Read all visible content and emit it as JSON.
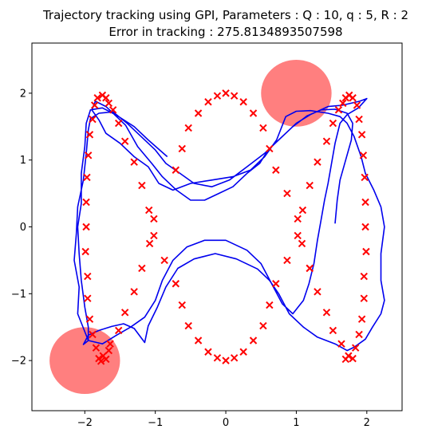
{
  "chart_data": {
    "type": "scatter",
    "title_line1": "Trajectory tracking using GPI, Parameters : Q : 10, q : 5, R : 2",
    "title_line2": "Error in tracking : 275.8134893507598",
    "xlabel": "",
    "ylabel": "",
    "xlim": [
      -2.75,
      2.5
    ],
    "ylim": [
      -2.75,
      2.75
    ],
    "xticks": [
      -2,
      -1,
      0,
      1,
      2
    ],
    "yticks": [
      -2,
      -1,
      0,
      1,
      2
    ],
    "xtick_labels": [
      "−2",
      "−1",
      "0",
      "1",
      "2"
    ],
    "ytick_labels": [
      "−2",
      "−1",
      "0",
      "1",
      "2"
    ],
    "grid": false,
    "legend": "none",
    "colors": {
      "reference": "#ff0000",
      "trajectory": "#0000ee",
      "obstacle": "#ff0000"
    },
    "obstacles": [
      {
        "cx": 1.0,
        "cy": 2.0,
        "r": 0.5,
        "opacity": 0.5
      },
      {
        "cx": -2.0,
        "cy": -2.0,
        "r": 0.5,
        "opacity": 0.5
      }
    ],
    "reference_points": [
      [
        -1.75,
        1.97
      ],
      [
        -1.82,
        1.93
      ],
      [
        -1.7,
        1.93
      ],
      [
        -1.66,
        1.85
      ],
      [
        -1.86,
        1.82
      ],
      [
        -1.6,
        1.75
      ],
      [
        -1.89,
        1.61
      ],
      [
        -1.52,
        1.55
      ],
      [
        -1.93,
        1.38
      ],
      [
        -1.43,
        1.28
      ],
      [
        -1.95,
        1.07
      ],
      [
        -1.3,
        0.97
      ],
      [
        -1.97,
        0.74
      ],
      [
        -1.19,
        0.62
      ],
      [
        -1.98,
        0.37
      ],
      [
        -1.09,
        0.25
      ],
      [
        -1.98,
        0.0
      ],
      [
        -1.02,
        0.12
      ],
      [
        -1.08,
        -0.25
      ],
      [
        -1.99,
        -0.37
      ],
      [
        -1.02,
        -0.13
      ],
      [
        -1.19,
        -0.62
      ],
      [
        -1.96,
        -0.74
      ],
      [
        -0.87,
        -0.5
      ],
      [
        -1.3,
        -0.97
      ],
      [
        -1.96,
        -1.07
      ],
      [
        -0.71,
        -0.85
      ],
      [
        -1.43,
        -1.28
      ],
      [
        -1.93,
        -1.38
      ],
      [
        -0.62,
        -1.17
      ],
      [
        -1.52,
        -1.55
      ],
      [
        -1.89,
        -1.61
      ],
      [
        -0.53,
        -1.48
      ],
      [
        -1.64,
        -1.75
      ],
      [
        -1.84,
        -1.81
      ],
      [
        -0.39,
        -1.7
      ],
      [
        -1.66,
        -1.85
      ],
      [
        -1.74,
        -1.93
      ],
      [
        -0.25,
        -1.87
      ],
      [
        -1.8,
        -1.97
      ],
      [
        -1.7,
        -1.98
      ],
      [
        -0.12,
        -1.96
      ],
      [
        0.0,
        -2.0
      ],
      [
        -1.77,
        -2.01
      ],
      [
        0.12,
        -1.96
      ],
      [
        0.25,
        -1.87
      ],
      [
        0.39,
        -1.7
      ],
      [
        0.53,
        -1.48
      ],
      [
        0.71,
        -0.85
      ],
      [
        0.62,
        -1.17
      ],
      [
        0.87,
        -0.5
      ],
      [
        1.02,
        -0.13
      ],
      [
        1.08,
        -0.25
      ],
      [
        1.19,
        -0.62
      ],
      [
        1.09,
        0.25
      ],
      [
        1.02,
        0.12
      ],
      [
        1.19,
        0.62
      ],
      [
        0.87,
        0.5
      ],
      [
        1.3,
        0.97
      ],
      [
        0.71,
        0.85
      ],
      [
        1.43,
        1.28
      ],
      [
        0.62,
        1.17
      ],
      [
        1.52,
        1.55
      ],
      [
        0.53,
        1.48
      ],
      [
        1.6,
        1.75
      ],
      [
        0.39,
        1.7
      ],
      [
        1.66,
        1.85
      ],
      [
        0.25,
        1.87
      ],
      [
        1.7,
        1.93
      ],
      [
        0.12,
        1.96
      ],
      [
        1.75,
        1.97
      ],
      [
        0.0,
        2.0
      ],
      [
        1.8,
        1.93
      ],
      [
        -0.12,
        1.96
      ],
      [
        1.86,
        1.82
      ],
      [
        -0.25,
        1.87
      ],
      [
        1.89,
        1.61
      ],
      [
        -0.39,
        1.7
      ],
      [
        1.93,
        1.38
      ],
      [
        -0.53,
        1.48
      ],
      [
        1.95,
        1.07
      ],
      [
        -0.62,
        1.17
      ],
      [
        1.97,
        0.74
      ],
      [
        -0.71,
        0.85
      ],
      [
        1.98,
        0.37
      ],
      [
        1.98,
        0.0
      ],
      [
        1.99,
        -0.37
      ],
      [
        1.96,
        -0.74
      ],
      [
        1.96,
        -1.07
      ],
      [
        1.93,
        -1.38
      ],
      [
        1.89,
        -1.61
      ],
      [
        1.84,
        -1.81
      ],
      [
        1.52,
        -1.55
      ],
      [
        1.64,
        -1.75
      ],
      [
        1.74,
        -1.93
      ],
      [
        1.8,
        -1.97
      ],
      [
        1.7,
        -1.98
      ],
      [
        1.43,
        -1.28
      ],
      [
        1.3,
        -0.97
      ],
      [
        1.19,
        -0.62
      ]
    ],
    "trajectory": [
      [
        -0.83,
        1.05
      ],
      [
        -1.1,
        1.3
      ],
      [
        -1.3,
        1.5
      ],
      [
        -1.55,
        1.67
      ],
      [
        -1.75,
        1.78
      ],
      [
        -1.92,
        1.75
      ],
      [
        -1.98,
        1.55
      ],
      [
        -2.0,
        1.2
      ],
      [
        -2.05,
        0.8
      ],
      [
        -2.05,
        0.35
      ],
      [
        -2.1,
        0.0
      ],
      [
        -2.08,
        -0.4
      ],
      [
        -2.05,
        -0.8
      ],
      [
        -2.0,
        -1.2
      ],
      [
        -1.95,
        -1.5
      ],
      [
        -1.95,
        -1.7
      ],
      [
        -2.02,
        -1.76
      ],
      [
        -1.95,
        -1.62
      ],
      [
        -1.8,
        -1.55
      ],
      [
        -1.62,
        -1.49
      ],
      [
        -1.45,
        -1.45
      ],
      [
        -1.3,
        -1.52
      ],
      [
        -1.15,
        -1.73
      ],
      [
        -1.1,
        -1.48
      ],
      [
        -0.97,
        -1.2
      ],
      [
        -0.85,
        -0.9
      ],
      [
        -0.68,
        -0.62
      ],
      [
        -0.45,
        -0.48
      ],
      [
        -0.15,
        -0.4
      ],
      [
        0.15,
        -0.48
      ],
      [
        0.45,
        -0.63
      ],
      [
        0.62,
        -0.8
      ],
      [
        0.75,
        -1.0
      ],
      [
        0.9,
        -1.3
      ],
      [
        1.1,
        -1.5
      ],
      [
        1.3,
        -1.65
      ],
      [
        1.55,
        -1.75
      ],
      [
        1.72,
        -1.85
      ],
      [
        1.82,
        -1.8
      ],
      [
        1.98,
        -1.68
      ],
      [
        2.08,
        -1.5
      ],
      [
        2.2,
        -1.3
      ],
      [
        2.25,
        -1.1
      ],
      [
        2.2,
        -0.8
      ],
      [
        2.2,
        -0.4
      ],
      [
        2.25,
        0.0
      ],
      [
        2.2,
        0.3
      ],
      [
        2.1,
        0.55
      ],
      [
        1.98,
        0.8
      ],
      [
        1.92,
        1.05
      ],
      [
        1.82,
        1.35
      ],
      [
        1.72,
        1.55
      ],
      [
        1.62,
        1.65
      ],
      [
        1.45,
        1.7
      ],
      [
        1.2,
        1.74
      ],
      [
        1.0,
        1.73
      ],
      [
        0.85,
        1.65
      ],
      [
        0.72,
        1.3
      ],
      [
        0.55,
        1.05
      ],
      [
        0.35,
        0.85
      ],
      [
        0.1,
        0.75
      ],
      [
        -0.2,
        0.7
      ],
      [
        -0.5,
        0.65
      ],
      [
        -0.75,
        0.55
      ],
      [
        -0.95,
        0.65
      ],
      [
        -1.1,
        0.9
      ],
      [
        -1.3,
        1.05
      ],
      [
        -1.5,
        1.25
      ],
      [
        -1.7,
        1.4
      ],
      [
        -1.8,
        1.6
      ],
      [
        -1.9,
        1.75
      ],
      [
        -1.85,
        1.88
      ],
      [
        -1.7,
        1.8
      ],
      [
        -1.55,
        1.65
      ],
      [
        -1.42,
        1.52
      ],
      [
        -1.25,
        1.2
      ],
      [
        -1.05,
        0.95
      ],
      [
        -0.9,
        0.75
      ],
      [
        -0.7,
        0.55
      ],
      [
        -0.5,
        0.4
      ],
      [
        -0.3,
        0.4
      ],
      [
        -0.1,
        0.5
      ],
      [
        0.1,
        0.6
      ],
      [
        0.3,
        0.8
      ],
      [
        0.48,
        0.95
      ],
      [
        0.6,
        1.15
      ],
      [
        0.8,
        1.35
      ],
      [
        1.0,
        1.55
      ],
      [
        1.2,
        1.68
      ],
      [
        1.45,
        1.8
      ],
      [
        1.65,
        1.82
      ],
      [
        1.9,
        1.88
      ],
      [
        2.0,
        1.92
      ],
      [
        1.88,
        1.78
      ],
      [
        1.72,
        1.68
      ],
      [
        1.62,
        1.55
      ],
      [
        1.55,
        1.25
      ],
      [
        1.5,
        0.95
      ],
      [
        1.45,
        0.65
      ],
      [
        1.4,
        0.4
      ],
      [
        1.35,
        0.1
      ],
      [
        1.3,
        -0.2
      ],
      [
        1.25,
        -0.55
      ],
      [
        1.18,
        -0.85
      ],
      [
        1.1,
        -1.1
      ],
      [
        0.95,
        -1.3
      ],
      [
        0.8,
        -1.15
      ],
      [
        0.65,
        -0.85
      ],
      [
        0.5,
        -0.55
      ],
      [
        0.3,
        -0.35
      ],
      [
        0.0,
        -0.2
      ],
      [
        -0.3,
        -0.2
      ],
      [
        -0.55,
        -0.3
      ],
      [
        -0.75,
        -0.5
      ],
      [
        -0.9,
        -0.8
      ],
      [
        -1.0,
        -1.1
      ],
      [
        -1.15,
        -1.35
      ],
      [
        -1.35,
        -1.5
      ],
      [
        -1.55,
        -1.62
      ],
      [
        -1.75,
        -1.75
      ],
      [
        -1.95,
        -1.7
      ],
      [
        -2.1,
        -1.3
      ],
      [
        -2.08,
        -0.9
      ],
      [
        -2.15,
        -0.5
      ],
      [
        -2.12,
        -0.1
      ],
      [
        -2.1,
        0.3
      ],
      [
        -2.02,
        0.7
      ],
      [
        -1.98,
        1.1
      ],
      [
        -1.95,
        1.45
      ],
      [
        -1.92,
        1.62
      ],
      [
        -1.8,
        1.7
      ],
      [
        -1.6,
        1.72
      ],
      [
        -1.4,
        1.55
      ],
      [
        -1.2,
        1.35
      ],
      [
        -1.0,
        1.15
      ],
      [
        -0.85,
        0.95
      ],
      [
        -0.65,
        0.8
      ],
      [
        -0.45,
        0.65
      ],
      [
        -0.2,
        0.6
      ],
      [
        0.05,
        0.7
      ],
      [
        0.3,
        0.9
      ],
      [
        0.55,
        1.1
      ],
      [
        0.75,
        1.3
      ],
      [
        0.95,
        1.5
      ],
      [
        1.15,
        1.66
      ],
      [
        1.35,
        1.75
      ],
      [
        1.55,
        1.76
      ],
      [
        1.72,
        1.7
      ],
      [
        1.8,
        1.55
      ],
      [
        1.78,
        1.3
      ],
      [
        1.7,
        1.0
      ],
      [
        1.62,
        0.7
      ],
      [
        1.58,
        0.4
      ],
      [
        1.55,
        0.05
      ]
    ]
  }
}
